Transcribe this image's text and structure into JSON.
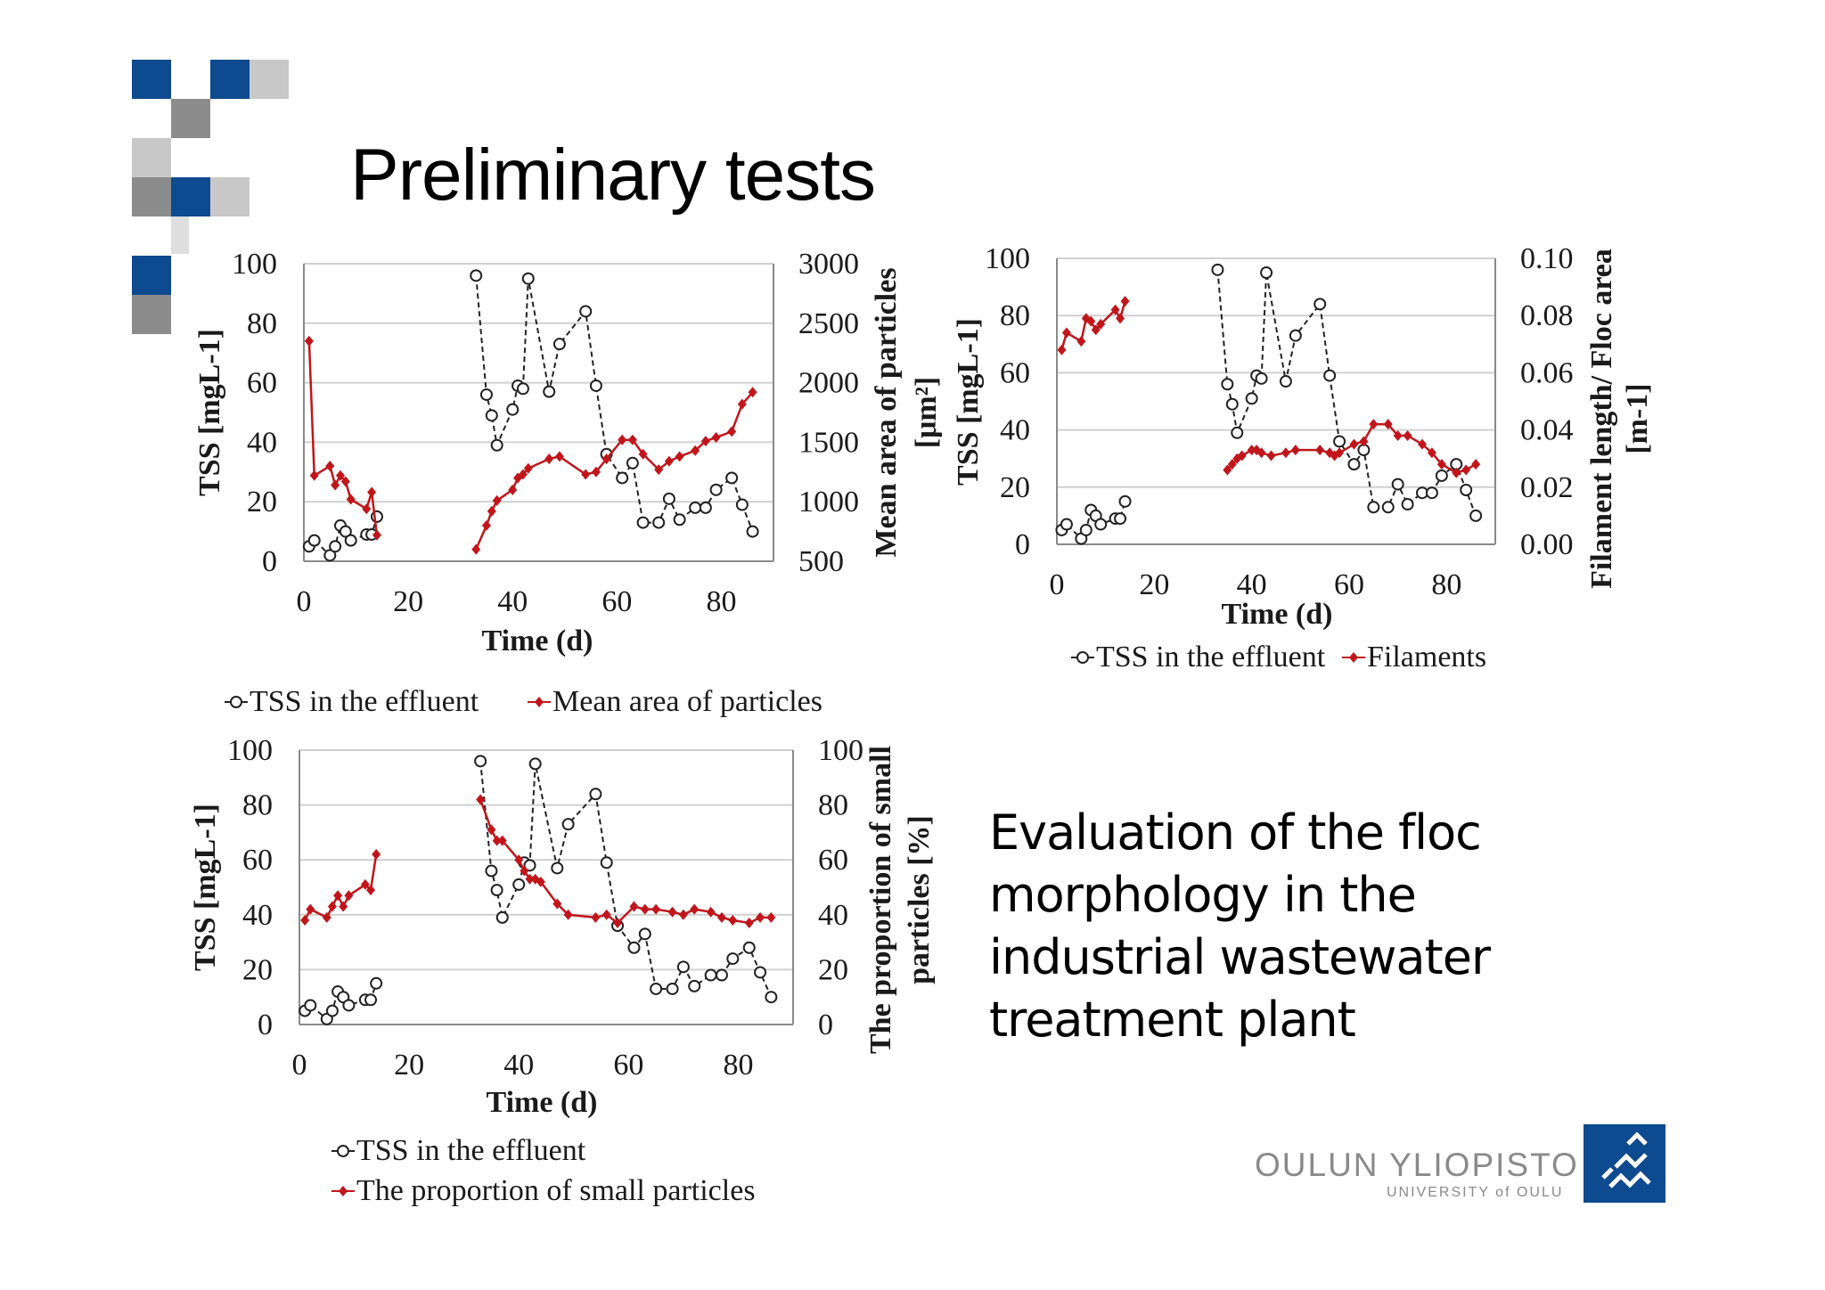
{
  "slide": {
    "title": "Preliminary tests",
    "description": "Evaluation of the floc morphology in the industrial wastewater treatment plant",
    "logo_main": "OULUN YLIOPISTO",
    "logo_sub": "UNIVERSITY of OULU"
  },
  "colors": {
    "tss": "#222222",
    "second": "#c0161b",
    "accent_blue": "#0d4a8f"
  },
  "chart_data": [
    {
      "id": "chart1",
      "type": "line",
      "xlabel": "Time (d)",
      "ylabel": "TSS [mgL-1]",
      "y2label_lines": [
        "Mean area of  particles",
        "[μm²]"
      ],
      "xticks": [
        "0",
        "20",
        "40",
        "60",
        "80"
      ],
      "yticks": [
        "0",
        "20",
        "40",
        "60",
        "80",
        "100"
      ],
      "y2ticks": [
        "500",
        "1000",
        "1500",
        "2000",
        "2500",
        "3000"
      ],
      "xlim": [
        0,
        90
      ],
      "ylim": [
        0,
        100
      ],
      "y2lim": [
        500,
        3000
      ],
      "legend_position": "bottom",
      "series": [
        {
          "name": "TSS in the effluent",
          "axis": "left",
          "style": "dashed-circle",
          "segments": [
            [
              [
                1,
                5
              ],
              [
                2,
                7
              ],
              [
                5,
                2
              ],
              [
                6,
                5
              ],
              [
                7,
                12
              ],
              [
                8,
                10
              ],
              [
                9,
                7
              ],
              [
                12,
                9
              ],
              [
                13,
                9
              ],
              [
                14,
                15
              ]
            ],
            [
              [
                33,
                96
              ],
              [
                35,
                56
              ],
              [
                36,
                49
              ],
              [
                37,
                39
              ],
              [
                40,
                51
              ],
              [
                41,
                59
              ],
              [
                42,
                58
              ],
              [
                43,
                95
              ],
              [
                47,
                57
              ],
              [
                49,
                73
              ],
              [
                54,
                84
              ],
              [
                56,
                59
              ],
              [
                58,
                36
              ],
              [
                61,
                28
              ],
              [
                63,
                33
              ],
              [
                65,
                13
              ],
              [
                68,
                13
              ],
              [
                70,
                21
              ],
              [
                72,
                14
              ],
              [
                75,
                18
              ],
              [
                77,
                18
              ],
              [
                79,
                24
              ],
              [
                82,
                28
              ],
              [
                84,
                19
              ],
              [
                86,
                10
              ]
            ]
          ]
        },
        {
          "name": "Mean area of particles",
          "axis": "right",
          "style": "solid-diamond",
          "segments": [
            [
              [
                1,
                2350
              ],
              [
                2,
                1220
              ],
              [
                5,
                1300
              ],
              [
                6,
                1140
              ],
              [
                7,
                1220
              ],
              [
                8,
                1170
              ],
              [
                9,
                1020
              ],
              [
                12,
                940
              ],
              [
                13,
                1080
              ],
              [
                14,
                720
              ]
            ],
            [
              [
                33,
                600
              ],
              [
                35,
                800
              ],
              [
                36,
                920
              ],
              [
                37,
                1010
              ],
              [
                40,
                1100
              ],
              [
                41,
                1200
              ],
              [
                42,
                1230
              ],
              [
                43,
                1280
              ],
              [
                47,
                1360
              ],
              [
                49,
                1380
              ],
              [
                54,
                1230
              ],
              [
                56,
                1250
              ],
              [
                58,
                1360
              ],
              [
                61,
                1520
              ],
              [
                63,
                1520
              ],
              [
                65,
                1400
              ],
              [
                68,
                1270
              ],
              [
                70,
                1340
              ],
              [
                72,
                1380
              ],
              [
                75,
                1430
              ],
              [
                77,
                1510
              ],
              [
                79,
                1540
              ],
              [
                82,
                1590
              ],
              [
                84,
                1820
              ],
              [
                86,
                1920
              ]
            ]
          ]
        }
      ]
    },
    {
      "id": "chart2",
      "type": "line",
      "xlabel": "Time (d)",
      "ylabel": "TSS [mgL-1]",
      "y2label_lines": [
        "Filament length/ Floc area",
        "[m-1]"
      ],
      "xticks": [
        "0",
        "20",
        "40",
        "60",
        "80"
      ],
      "yticks": [
        "0",
        "20",
        "40",
        "60",
        "80",
        "100"
      ],
      "y2ticks": [
        "0.00",
        "0.02",
        "0.04",
        "0.06",
        "0.08",
        "0.10"
      ],
      "xlim": [
        0,
        90
      ],
      "ylim": [
        0,
        100
      ],
      "y2lim": [
        0,
        0.1
      ],
      "legend_position": "bottom",
      "series": [
        {
          "name": "TSS in the effluent",
          "axis": "left",
          "style": "dashed-circle",
          "segments": [
            [
              [
                1,
                5
              ],
              [
                2,
                7
              ],
              [
                5,
                2
              ],
              [
                6,
                5
              ],
              [
                7,
                12
              ],
              [
                8,
                10
              ],
              [
                9,
                7
              ],
              [
                12,
                9
              ],
              [
                13,
                9
              ],
              [
                14,
                15
              ]
            ],
            [
              [
                33,
                96
              ],
              [
                35,
                56
              ],
              [
                36,
                49
              ],
              [
                37,
                39
              ],
              [
                40,
                51
              ],
              [
                41,
                59
              ],
              [
                42,
                58
              ],
              [
                43,
                95
              ],
              [
                47,
                57
              ],
              [
                49,
                73
              ],
              [
                54,
                84
              ],
              [
                56,
                59
              ],
              [
                58,
                36
              ],
              [
                61,
                28
              ],
              [
                63,
                33
              ],
              [
                65,
                13
              ],
              [
                68,
                13
              ],
              [
                70,
                21
              ],
              [
                72,
                14
              ],
              [
                75,
                18
              ],
              [
                77,
                18
              ],
              [
                79,
                24
              ],
              [
                82,
                28
              ],
              [
                84,
                19
              ],
              [
                86,
                10
              ]
            ]
          ]
        },
        {
          "name": "Filaments",
          "axis": "right",
          "style": "solid-diamond",
          "segments": [
            [
              [
                1,
                0.068
              ],
              [
                2,
                0.074
              ],
              [
                5,
                0.071
              ],
              [
                6,
                0.079
              ],
              [
                7,
                0.078
              ],
              [
                8,
                0.075
              ],
              [
                9,
                0.077
              ],
              [
                12,
                0.082
              ],
              [
                13,
                0.079
              ],
              [
                14,
                0.085
              ]
            ],
            [
              [
                35,
                0.026
              ],
              [
                36,
                0.028
              ],
              [
                37,
                0.03
              ],
              [
                38,
                0.031
              ],
              [
                40,
                0.033
              ],
              [
                41,
                0.033
              ],
              [
                42,
                0.032
              ],
              [
                44,
                0.031
              ],
              [
                47,
                0.032
              ],
              [
                49,
                0.033
              ],
              [
                54,
                0.033
              ],
              [
                56,
                0.032
              ],
              [
                57,
                0.031
              ],
              [
                58,
                0.032
              ],
              [
                61,
                0.035
              ],
              [
                63,
                0.036
              ],
              [
                65,
                0.042
              ],
              [
                68,
                0.042
              ],
              [
                70,
                0.038
              ],
              [
                72,
                0.038
              ],
              [
                75,
                0.035
              ],
              [
                77,
                0.032
              ],
              [
                79,
                0.028
              ],
              [
                82,
                0.025
              ],
              [
                84,
                0.026
              ],
              [
                86,
                0.028
              ]
            ]
          ]
        }
      ]
    },
    {
      "id": "chart3",
      "type": "line",
      "xlabel": "Time (d)",
      "ylabel": "TSS [mgL-1]",
      "y2label_lines": [
        "The proportion of small",
        "particles [%]"
      ],
      "xticks": [
        "0",
        "20",
        "40",
        "60",
        "80"
      ],
      "yticks": [
        "0",
        "20",
        "40",
        "60",
        "80",
        "100"
      ],
      "y2ticks": [
        "0",
        "20",
        "40",
        "60",
        "80",
        "100"
      ],
      "xlim": [
        0,
        90
      ],
      "ylim": [
        0,
        100
      ],
      "y2lim": [
        0,
        100
      ],
      "legend_position": "bottom",
      "series": [
        {
          "name": "TSS in the effluent",
          "axis": "left",
          "style": "dashed-circle",
          "segments": [
            [
              [
                1,
                5
              ],
              [
                2,
                7
              ],
              [
                5,
                2
              ],
              [
                6,
                5
              ],
              [
                7,
                12
              ],
              [
                8,
                10
              ],
              [
                9,
                7
              ],
              [
                12,
                9
              ],
              [
                13,
                9
              ],
              [
                14,
                15
              ]
            ],
            [
              [
                33,
                96
              ],
              [
                35,
                56
              ],
              [
                36,
                49
              ],
              [
                37,
                39
              ],
              [
                40,
                51
              ],
              [
                41,
                59
              ],
              [
                42,
                58
              ],
              [
                43,
                95
              ],
              [
                47,
                57
              ],
              [
                49,
                73
              ],
              [
                54,
                84
              ],
              [
                56,
                59
              ],
              [
                58,
                36
              ],
              [
                61,
                28
              ],
              [
                63,
                33
              ],
              [
                65,
                13
              ],
              [
                68,
                13
              ],
              [
                70,
                21
              ],
              [
                72,
                14
              ],
              [
                75,
                18
              ],
              [
                77,
                18
              ],
              [
                79,
                24
              ],
              [
                82,
                28
              ],
              [
                84,
                19
              ],
              [
                86,
                10
              ]
            ]
          ]
        },
        {
          "name": "The proportion of small particles",
          "axis": "right",
          "style": "solid-diamond",
          "segments": [
            [
              [
                1,
                38
              ],
              [
                2,
                42
              ],
              [
                5,
                39
              ],
              [
                6,
                43
              ],
              [
                7,
                47
              ],
              [
                8,
                43
              ],
              [
                9,
                47
              ],
              [
                12,
                51
              ],
              [
                13,
                49
              ],
              [
                14,
                62
              ]
            ],
            [
              [
                33,
                82
              ],
              [
                35,
                71
              ],
              [
                36,
                67
              ],
              [
                37,
                67
              ],
              [
                40,
                60
              ],
              [
                41,
                56
              ],
              [
                42,
                53
              ],
              [
                43,
                53
              ],
              [
                44,
                52
              ],
              [
                47,
                44
              ],
              [
                49,
                40
              ],
              [
                54,
                39
              ],
              [
                56,
                40
              ],
              [
                58,
                37
              ],
              [
                61,
                43
              ],
              [
                63,
                42
              ],
              [
                65,
                42
              ],
              [
                68,
                41
              ],
              [
                70,
                40
              ],
              [
                72,
                42
              ],
              [
                75,
                41
              ],
              [
                77,
                39
              ],
              [
                79,
                38
              ],
              [
                82,
                37
              ],
              [
                84,
                39
              ],
              [
                86,
                39
              ]
            ]
          ]
        }
      ]
    }
  ]
}
